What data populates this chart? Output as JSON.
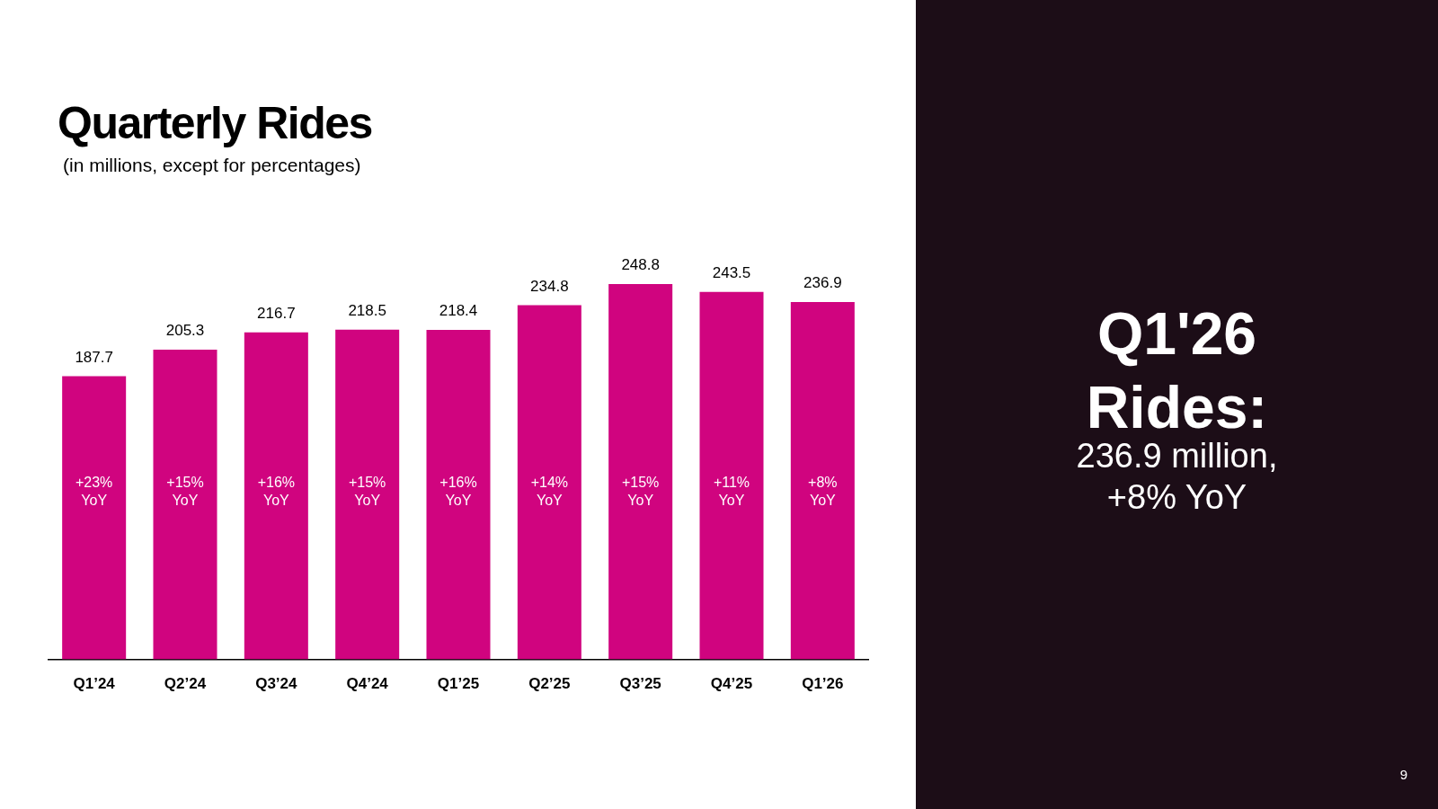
{
  "chart_data": {
    "type": "bar",
    "title": "Quarterly Rides",
    "subtitle": "(in millions, except for percentages)",
    "categories": [
      "Q1’24",
      "Q2’24",
      "Q3’24",
      "Q4’24",
      "Q1’25",
      "Q2’25",
      "Q3’25",
      "Q4’25",
      "Q1’26"
    ],
    "values": [
      187.7,
      205.3,
      216.7,
      218.5,
      218.4,
      234.8,
      248.8,
      243.5,
      236.9
    ],
    "color": "#d0047f",
    "tick_labels": "x",
    "grid": false,
    "legend": false,
    "data_labels": true,
    "annotations": [
      "+23%\nYoY",
      "+15%\nYoY",
      "+16%\nYoY",
      "+15%\nYoY",
      "+16%\nYoY",
      "+14%\nYoY",
      "+15%\nYoY",
      "+11%\nYoY",
      "+8%\nYoY",
      "Q1'26\nRides:",
      "236.9 million,\n+8% YoY",
      "9"
    ]
  }
}
